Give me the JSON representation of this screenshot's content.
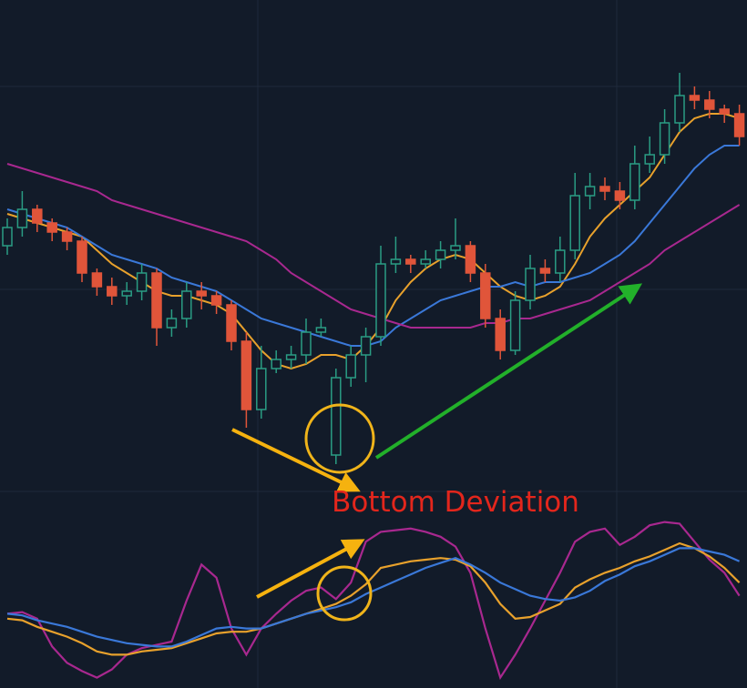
{
  "chart_data": [
    {
      "type": "candlestick",
      "annotation": "Bottom Deviation",
      "ylim": [
        0,
        100
      ],
      "up_color": "#2a9d84",
      "down_color": "#e0553a",
      "open": [
        58,
        62,
        66,
        63,
        61,
        59,
        52,
        49,
        47,
        48,
        52,
        40,
        42,
        48,
        47,
        45,
        37,
        22,
        31,
        33,
        34,
        39,
        12,
        29,
        34,
        38,
        54,
        55,
        54,
        55,
        57,
        58,
        52,
        42,
        35,
        46,
        53,
        52,
        57,
        69,
        71,
        70,
        68,
        76,
        78,
        85,
        91,
        90,
        88,
        87
      ],
      "high": [
        64,
        70,
        67,
        64,
        62,
        60,
        53,
        51,
        50,
        54,
        53,
        44,
        50,
        50,
        48,
        46,
        39,
        36,
        35,
        36,
        42,
        42,
        31,
        36,
        40,
        58,
        60,
        56,
        57,
        59,
        64,
        59,
        54,
        44,
        48,
        56,
        55,
        60,
        74,
        74,
        73,
        72,
        80,
        82,
        88,
        96,
        93,
        92,
        89,
        89
      ],
      "low": [
        56,
        60,
        61,
        59,
        57,
        50,
        47,
        45,
        45,
        46,
        36,
        38,
        40,
        44,
        43,
        35,
        18,
        20,
        30,
        31,
        32,
        38,
        10,
        27,
        28,
        36,
        52,
        52,
        53,
        53,
        55,
        50,
        40,
        33,
        34,
        44,
        50,
        50,
        55,
        66,
        68,
        66,
        66,
        74,
        76,
        83,
        88,
        86,
        85,
        80
      ],
      "close": [
        62,
        66,
        63,
        61,
        59,
        52,
        49,
        47,
        48,
        52,
        40,
        42,
        48,
        47,
        45,
        37,
        22,
        31,
        33,
        34,
        39,
        40,
        29,
        34,
        38,
        54,
        55,
        54,
        55,
        57,
        58,
        52,
        42,
        35,
        46,
        53,
        52,
        57,
        69,
        71,
        70,
        68,
        76,
        78,
        85,
        91,
        90,
        88,
        87,
        82
      ],
      "lines": [
        {
          "color": "#e8a12c",
          "values": [
            65,
            64,
            63,
            62,
            61,
            60,
            57,
            54,
            52,
            50,
            48,
            47,
            47,
            46,
            45,
            43,
            39,
            35,
            32,
            31,
            32,
            34,
            34,
            33,
            36,
            40,
            46,
            50,
            53,
            55,
            56,
            55,
            52,
            49,
            47,
            46,
            47,
            49,
            54,
            60,
            64,
            67,
            70,
            73,
            78,
            83,
            86,
            87,
            87,
            86
          ]
        },
        {
          "color": "#3a78d8",
          "values": [
            66,
            65,
            64,
            63,
            62,
            60,
            58,
            56,
            55,
            54,
            53,
            51,
            50,
            49,
            48,
            46,
            44,
            42,
            41,
            40,
            39,
            38,
            37,
            36,
            36,
            37,
            40,
            42,
            44,
            46,
            47,
            48,
            49,
            49,
            50,
            49,
            50,
            50,
            51,
            52,
            54,
            56,
            59,
            63,
            67,
            71,
            75,
            78,
            80,
            80
          ]
        },
        {
          "color": "#a8288f",
          "values": [
            76,
            75,
            74,
            73,
            72,
            71,
            70,
            68,
            67,
            66,
            65,
            64,
            63,
            62,
            61,
            60,
            59,
            57,
            55,
            52,
            50,
            48,
            46,
            44,
            43,
            42,
            41,
            40,
            40,
            40,
            40,
            40,
            41,
            41,
            42,
            42,
            43,
            44,
            45,
            46,
            48,
            50,
            52,
            54,
            57,
            59,
            61,
            63,
            65,
            67
          ]
        }
      ]
    },
    {
      "type": "line",
      "ylim": [
        0,
        100
      ],
      "series": [
        {
          "color": "#a8288f",
          "values": [
            42,
            43,
            39,
            22,
            12,
            7,
            3,
            8,
            17,
            21,
            23,
            25,
            50,
            72,
            64,
            33,
            17,
            33,
            42,
            50,
            56,
            58,
            51,
            61,
            86,
            92,
            93,
            94,
            92,
            89,
            83,
            67,
            33,
            3,
            17,
            33,
            50,
            67,
            86,
            92,
            94,
            84,
            89,
            96,
            98,
            97,
            86,
            75,
            67,
            53
          ]
        },
        {
          "color": "#e8a12c",
          "values": [
            39,
            38,
            34,
            31,
            28,
            24,
            19,
            17,
            17,
            19,
            20,
            21,
            24,
            27,
            30,
            31,
            31,
            33,
            36,
            39,
            42,
            45,
            48,
            53,
            60,
            70,
            72,
            74,
            75,
            76,
            75,
            71,
            61,
            48,
            39,
            40,
            44,
            48,
            58,
            63,
            67,
            70,
            74,
            77,
            81,
            85,
            82,
            77,
            70,
            61
          ]
        },
        {
          "color": "#3a78d8",
          "values": [
            42,
            41,
            38,
            36,
            34,
            31,
            28,
            26,
            24,
            23,
            22,
            22,
            25,
            29,
            33,
            34,
            33,
            33,
            36,
            39,
            42,
            44,
            46,
            49,
            54,
            58,
            62,
            66,
            70,
            73,
            76,
            72,
            67,
            61,
            57,
            53,
            51,
            50,
            52,
            56,
            62,
            66,
            71,
            74,
            78,
            82,
            82,
            80,
            78,
            74
          ]
        }
      ]
    }
  ]
}
